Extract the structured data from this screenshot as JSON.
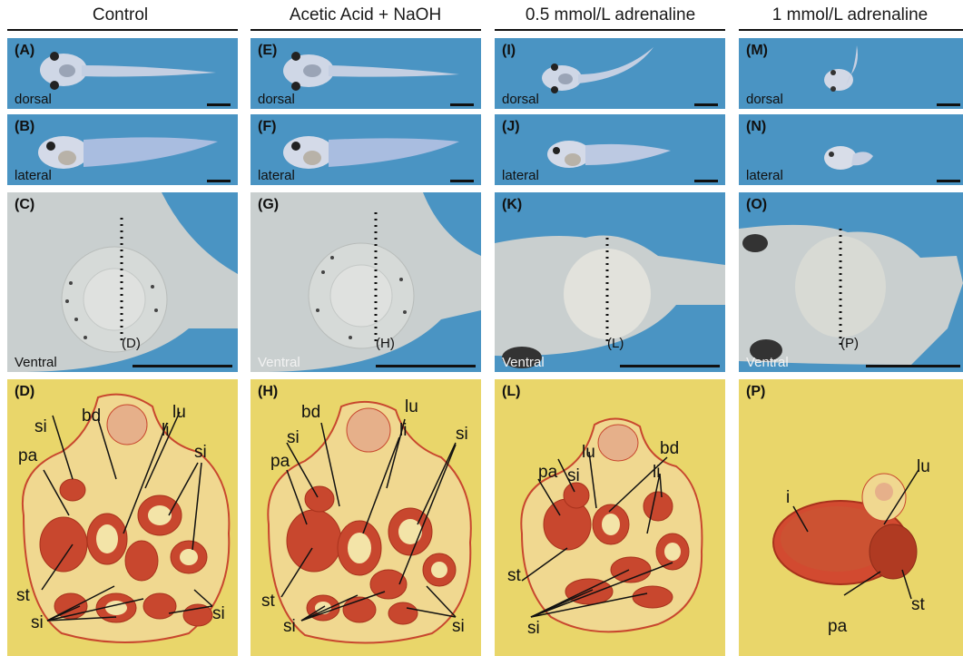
{
  "columns": [
    {
      "title": "Control"
    },
    {
      "title": "Acetic Acid + NaOH"
    },
    {
      "title": "0.5 mmol/L adrenaline"
    },
    {
      "title": "1 mmol/L adrenaline"
    }
  ],
  "panels": {
    "dorsal": [
      "(A)",
      "(E)",
      "(I)",
      "(M)"
    ],
    "lateral": [
      "(B)",
      "(F)",
      "(J)",
      "(N)"
    ],
    "ventral": [
      "(C)",
      "(G)",
      "(K)",
      "(O)"
    ],
    "section": [
      "(D)",
      "(H)",
      "(L)",
      "(P)"
    ]
  },
  "view_labels": {
    "dorsal": "dorsal",
    "lateral": "lateral",
    "ventral": "Ventral"
  },
  "section_refs": [
    "(D)",
    "(H)",
    "(L)",
    "(P)"
  ],
  "tissue_labels": {
    "c0": [
      "bd",
      "si",
      "pa",
      "lu",
      "li",
      "si",
      "st",
      "si",
      "si"
    ],
    "c1": [
      "bd",
      "si",
      "pa",
      "lu",
      "li",
      "si",
      "st",
      "si",
      "si"
    ],
    "c2": [
      "si",
      "lu",
      "pa",
      "bd",
      "li",
      "st",
      "si"
    ],
    "c3": [
      "i",
      "lu",
      "st",
      "pa"
    ]
  },
  "colors": {
    "water_blue": "#4a94c3",
    "section_yellow": "#e9d66a",
    "tissue_red": "#c8472e"
  }
}
